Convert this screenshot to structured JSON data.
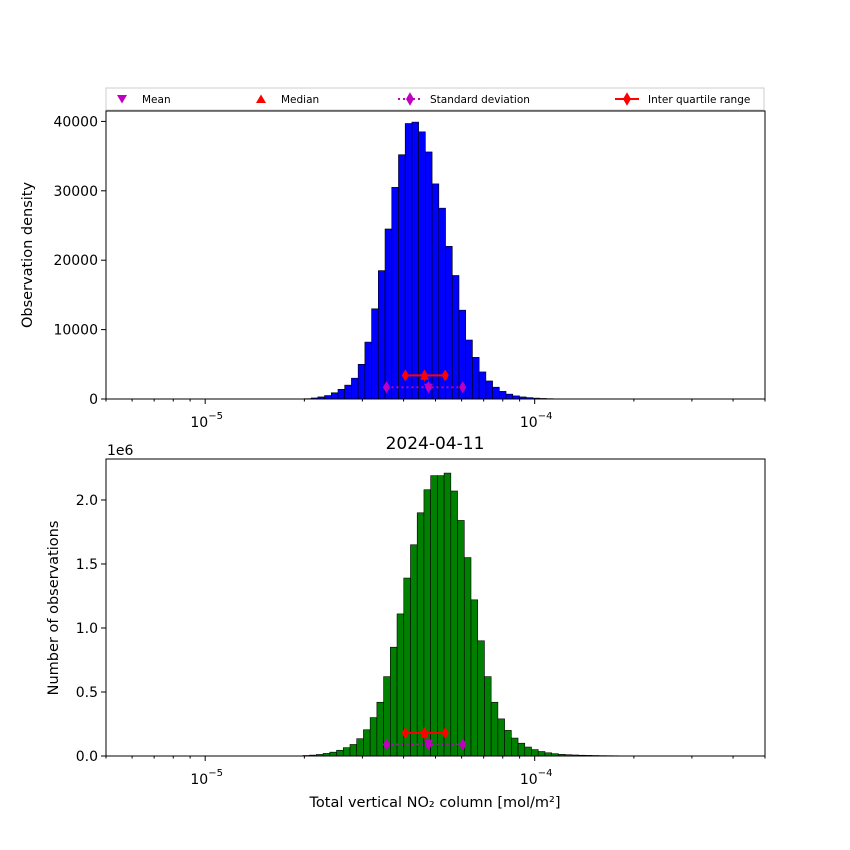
{
  "legend": {
    "items": [
      {
        "label": "Mean",
        "marker": "triangle-down",
        "color": "#bf00bf",
        "line": "none"
      },
      {
        "label": "Median",
        "marker": "triangle-up",
        "color": "#ff0000",
        "line": "none"
      },
      {
        "label": "Standard deviation",
        "marker": "diamond",
        "color": "#bf00bf",
        "line": "dotted"
      },
      {
        "label": "Inter quartile range",
        "marker": "diamond",
        "color": "#ff0000",
        "line": "solid"
      }
    ],
    "placement": "top, above first panel, horizontal"
  },
  "chart_data": [
    {
      "type": "bar",
      "title": "",
      "xlabel": "",
      "ylabel": "Observation density",
      "xscale": "log",
      "xlim": [
        5e-06,
        0.0005
      ],
      "ylim": [
        0,
        41500
      ],
      "yticks": [
        0,
        10000,
        20000,
        30000,
        40000
      ],
      "ytick_labels": [
        "0",
        "10000",
        "20000",
        "30000",
        "40000"
      ],
      "xticks": [
        1e-05,
        0.0001
      ],
      "xtick_labels": [
        "10",
        "10"
      ],
      "xtick_exponents": [
        "−5",
        "−4"
      ],
      "bar_color": "#0000ff",
      "bins": {
        "start": 2e-05,
        "log_width": 0.0204
      },
      "values": [
        50,
        150,
        300,
        500,
        900,
        1400,
        2000,
        3000,
        5000,
        8200,
        13000,
        18500,
        24500,
        30500,
        35200,
        39700,
        39900,
        38500,
        35600,
        31000,
        27500,
        22000,
        17800,
        12800,
        8500,
        6000,
        3900,
        2600,
        1700,
        1100,
        700,
        450,
        300,
        200,
        130,
        80,
        50,
        30,
        20,
        10
      ],
      "overlays": {
        "mean": {
          "x": 4.76e-05,
          "y": 1700
        },
        "median": {
          "x": 4.63e-05,
          "y": 3300
        },
        "std": {
          "x": [
            3.55e-05,
            4.76e-05,
            6.05e-05
          ],
          "y": 1700
        },
        "iqr": {
          "x": [
            4.05e-05,
            4.63e-05,
            5.35e-05
          ],
          "y": 3400
        }
      }
    },
    {
      "type": "bar",
      "title": "2024-04-11",
      "xlabel": "Total vertical NO₂ column [mol/m²]",
      "ylabel": "Number of observations",
      "y_offset_label": "1e6",
      "xscale": "log",
      "xlim": [
        5e-06,
        0.0005
      ],
      "ylim": [
        0,
        2.32
      ],
      "yticks": [
        0,
        0.5,
        1.0,
        1.5,
        2.0
      ],
      "ytick_labels": [
        "0.0",
        "0.5",
        "1.0",
        "1.5",
        "2.0"
      ],
      "xticks": [
        1e-05,
        0.0001
      ],
      "xtick_labels": [
        "10",
        "10"
      ],
      "xtick_exponents": [
        "−5",
        "−4"
      ],
      "bar_color": "#008000",
      "bins": {
        "start": 1.98e-05,
        "log_width": 0.0204
      },
      "values": [
        0.004,
        0.007,
        0.012,
        0.02,
        0.03,
        0.045,
        0.065,
        0.09,
        0.135,
        0.205,
        0.3,
        0.42,
        0.62,
        0.85,
        1.11,
        1.39,
        1.65,
        1.9,
        2.08,
        2.19,
        2.19,
        2.21,
        2.07,
        1.84,
        1.55,
        1.22,
        0.9,
        0.62,
        0.42,
        0.29,
        0.2,
        0.14,
        0.1,
        0.07,
        0.05,
        0.035,
        0.025,
        0.018,
        0.013,
        0.01,
        0.008,
        0.006,
        0.005,
        0.004,
        0.003,
        0.0025,
        0.002,
        0.0015,
        0.001,
        0.001,
        0.0008,
        0.0006
      ],
      "overlays": {
        "mean": {
          "x": 4.76e-05,
          "y": 0.1
        },
        "median": {
          "x": 4.63e-05,
          "y": 0.17
        },
        "std": {
          "x": [
            3.55e-05,
            4.76e-05,
            6.05e-05
          ],
          "y": 0.09
        },
        "iqr": {
          "x": [
            4.05e-05,
            4.63e-05,
            5.35e-05
          ],
          "y": 0.18
        }
      }
    }
  ]
}
